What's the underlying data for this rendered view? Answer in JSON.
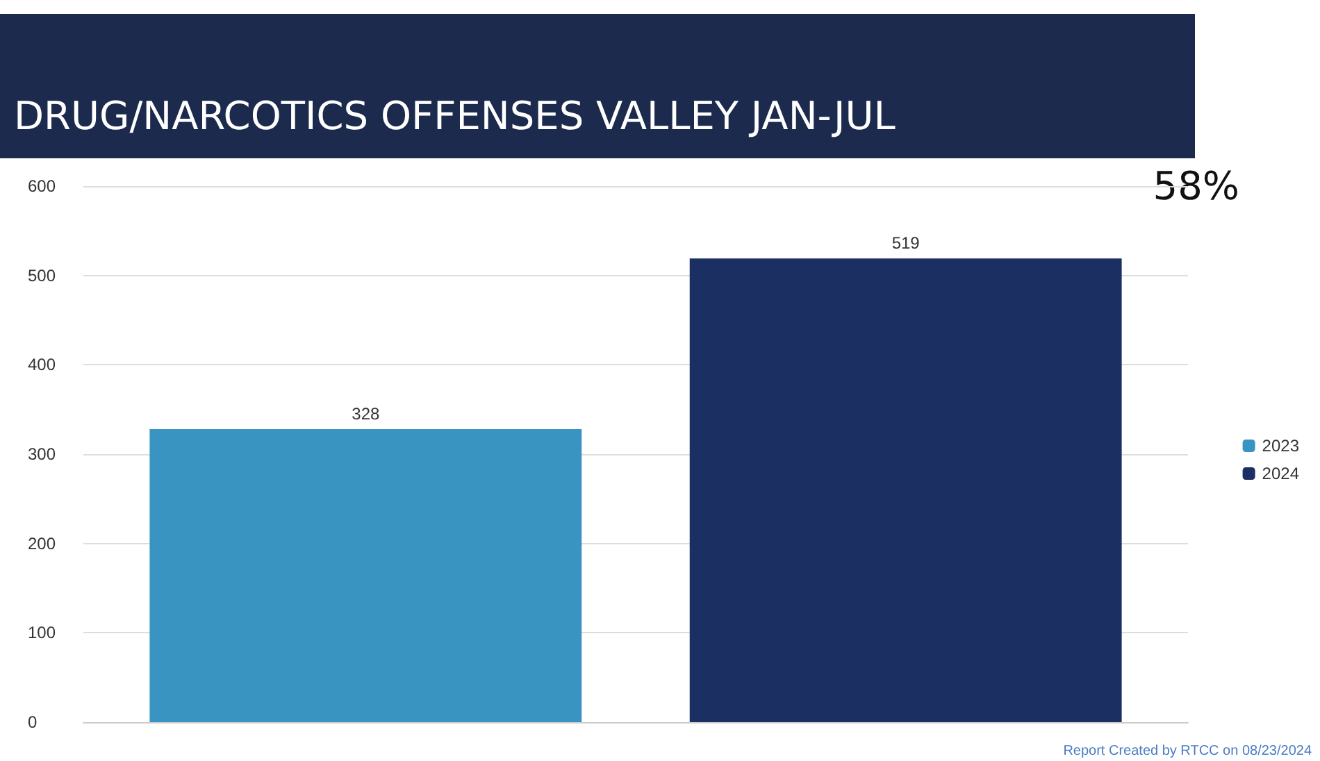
{
  "chart_data": {
    "type": "bar",
    "title": "DRUG/NARCOTICS OFFENSES VALLEY JAN-JUL",
    "categories": [
      null
    ],
    "series": [
      {
        "name": "2023",
        "color": "#3a94c2",
        "values": [
          328
        ]
      },
      {
        "name": "2024",
        "color": "#1c2f62",
        "values": [
          519
        ]
      }
    ],
    "ylim": [
      0,
      600
    ],
    "yticks": [
      0,
      100,
      200,
      300,
      400,
      500,
      600
    ],
    "grid": "y",
    "legend": "right",
    "data_labels": true,
    "annotations": [
      "58%",
      "Report Created by RTCC on 08/23/2024"
    ]
  }
}
